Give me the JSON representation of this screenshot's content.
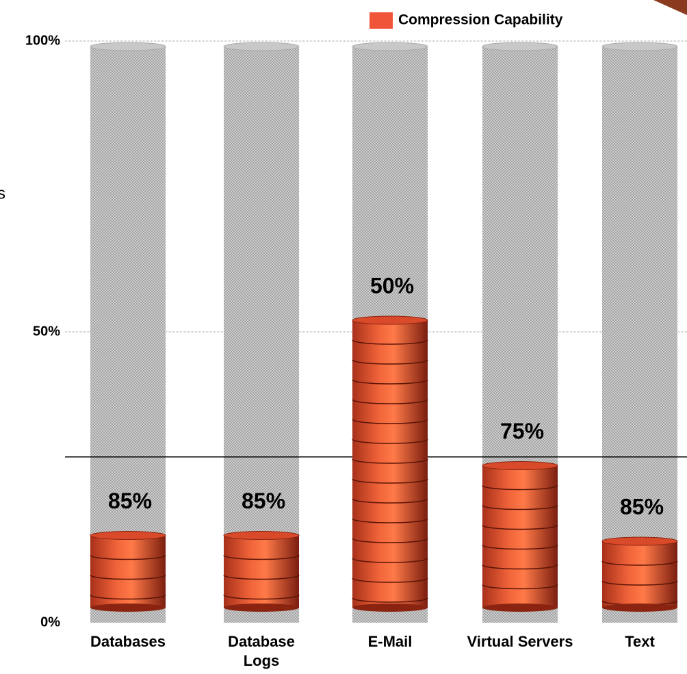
{
  "chart_data": {
    "type": "cylinder_bar",
    "legend": "Compression Capability",
    "side_text": "s",
    "categories": [
      "Databases",
      "Database Logs",
      "E-Mail",
      "Virtual Servers",
      "Text"
    ],
    "series": [
      {
        "name": "Compression Capability",
        "color": "#e8502e",
        "values": [
          15,
          15,
          52,
          27,
          14
        ]
      }
    ],
    "annotations": [
      "85%",
      "85%",
      "50%",
      "75%",
      "85%"
    ],
    "reference_line": 28.5,
    "ylim": [
      0,
      100
    ],
    "yticks": [
      {
        "value": 0,
        "label": "0%"
      },
      {
        "value": 50,
        "label": "50%"
      },
      {
        "value": 100,
        "label": "100%"
      }
    ],
    "grid": true
  }
}
